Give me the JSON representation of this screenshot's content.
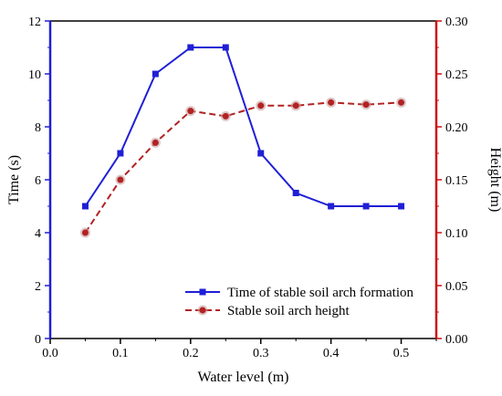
{
  "chart_data": {
    "type": "line",
    "xlabel": "Water level (m)",
    "ylabel_left": "Time (s)",
    "ylabel_right": "Height (m)",
    "xlim": [
      0.0,
      0.55
    ],
    "ylim_left": [
      0,
      12
    ],
    "ylim_right": [
      0.0,
      0.3
    ],
    "x_ticks": [
      "0.0",
      "0.1",
      "0.2",
      "0.3",
      "0.4",
      "0.5"
    ],
    "y_left_ticks": [
      "0",
      "2",
      "4",
      "6",
      "8",
      "10",
      "12"
    ],
    "y_right_ticks": [
      "0.00",
      "0.05",
      "0.10",
      "0.15",
      "0.20",
      "0.25",
      "0.30"
    ],
    "legend_position": "bottom-right",
    "grid": false,
    "series": [
      {
        "name": "Time of stable soil arch formation",
        "axis": "left",
        "color": "#1f1fd6",
        "line_style": "solid",
        "marker": "square",
        "x": [
          0.05,
          0.1,
          0.15,
          0.2,
          0.25,
          0.3,
          0.35,
          0.4,
          0.45,
          0.5
        ],
        "y": [
          5,
          7,
          10,
          11,
          11,
          7,
          5.5,
          5,
          5,
          5
        ]
      },
      {
        "name": "Stable soil arch height",
        "axis": "right",
        "color": "#b22222",
        "line_style": "dashed",
        "marker": "circle",
        "x": [
          0.05,
          0.1,
          0.15,
          0.2,
          0.25,
          0.3,
          0.35,
          0.4,
          0.45,
          0.5
        ],
        "y": [
          0.1,
          0.15,
          0.185,
          0.215,
          0.21,
          0.22,
          0.22,
          0.223,
          0.221,
          0.223
        ]
      }
    ],
    "axis_colors": {
      "left": "#1f1fd6",
      "right": "#cc1111"
    }
  }
}
